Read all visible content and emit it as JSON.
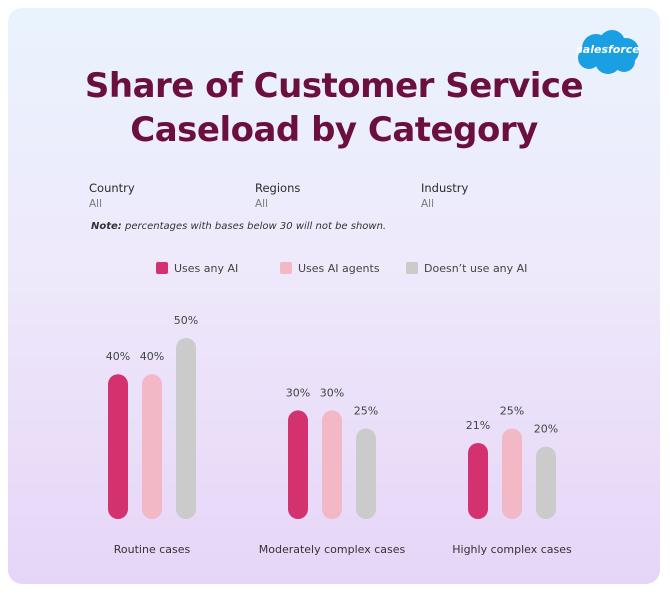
{
  "brand": {
    "logo_text": "salesforce",
    "logo_color": "#1aa0e2"
  },
  "header": {
    "title_line1": "Share of Customer Service",
    "title_line2": "Caseload by Category"
  },
  "filters": [
    {
      "label": "Country",
      "value": "All"
    },
    {
      "label": "Regions",
      "value": "All"
    },
    {
      "label": "Industry",
      "value": "All"
    }
  ],
  "note": {
    "prefix": "Note:",
    "text": "percentages with bases below 30 will not be shown."
  },
  "colors": {
    "title": "#6b0f3f",
    "uses_any_ai": "#d3326f",
    "uses_ai_agents": "#f2b8c6",
    "no_ai": "#cbcbcb"
  },
  "chart_data": {
    "type": "bar",
    "title": "Share of Customer Service Caseload by Category",
    "categories": [
      "Routine cases",
      "Moderately complex cases",
      "Highly complex cases"
    ],
    "series": [
      {
        "name": "Uses any AI",
        "values": [
          40,
          30,
          21
        ],
        "labels": [
          "40%",
          "30%",
          "21%"
        ],
        "color": "#d3326f"
      },
      {
        "name": "Uses AI agents",
        "values": [
          40,
          30,
          25
        ],
        "labels": [
          "40%",
          "30%",
          "25%"
        ],
        "color": "#f2b8c6"
      },
      {
        "name": "Doesn’t use any AI",
        "values": [
          50,
          25,
          20
        ],
        "labels": [
          "50%",
          "25%",
          "20%"
        ],
        "color": "#cbcbcb"
      }
    ],
    "ylim": [
      0,
      50
    ],
    "xlabel": "",
    "ylabel": "",
    "grid": false,
    "legend_position": "top"
  }
}
